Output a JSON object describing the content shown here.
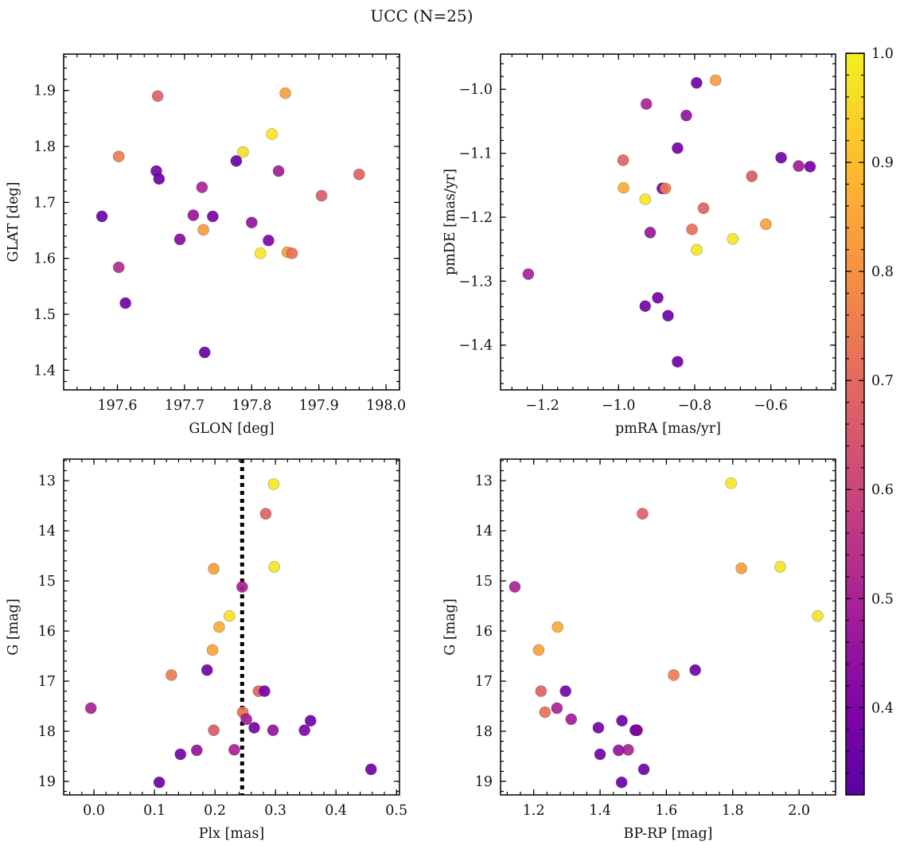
{
  "figure": {
    "title": "UCC (N=25)"
  },
  "colorbar": {
    "min": 0.32,
    "max": 1.0,
    "ticks": [
      0.4,
      0.5,
      0.6,
      0.7,
      0.8,
      0.9,
      1.0
    ],
    "tick_labels": [
      "0.4",
      "0.5",
      "0.6",
      "0.7",
      "0.8",
      "0.9",
      "1.0"
    ],
    "colormap": "plasma"
  },
  "chart_data": [
    {
      "type": "scatter",
      "xlabel": "GLON [deg]",
      "ylabel": "GLAT [deg]",
      "xlim": [
        197.52,
        198.02
      ],
      "ylim": [
        1.365,
        1.965
      ],
      "y_inverted": false,
      "x_ticks": [
        197.6,
        197.7,
        197.8,
        197.9,
        198.0
      ],
      "x_tick_labels": [
        "197.6",
        "197.7",
        "197.8",
        "197.9",
        "198.0"
      ],
      "y_ticks": [
        1.4,
        1.5,
        1.6,
        1.7,
        1.8,
        1.9
      ],
      "y_tick_labels": [
        "1.4",
        "1.5",
        "1.6",
        "1.7",
        "1.8",
        "1.9"
      ],
      "points": [
        {
          "x": 197.66,
          "y": 1.89,
          "c": 0.68
        },
        {
          "x": 197.85,
          "y": 1.895,
          "c": 0.83
        },
        {
          "x": 197.83,
          "y": 1.822,
          "c": 0.98
        },
        {
          "x": 197.787,
          "y": 1.79,
          "c": 0.97
        },
        {
          "x": 197.602,
          "y": 1.782,
          "c": 0.75
        },
        {
          "x": 197.777,
          "y": 1.774,
          "c": 0.35
        },
        {
          "x": 197.658,
          "y": 1.756,
          "c": 0.38
        },
        {
          "x": 197.84,
          "y": 1.756,
          "c": 0.48
        },
        {
          "x": 197.96,
          "y": 1.75,
          "c": 0.68
        },
        {
          "x": 197.662,
          "y": 1.742,
          "c": 0.36
        },
        {
          "x": 197.726,
          "y": 1.727,
          "c": 0.5
        },
        {
          "x": 197.904,
          "y": 1.712,
          "c": 0.66
        },
        {
          "x": 197.577,
          "y": 1.675,
          "c": 0.36
        },
        {
          "x": 197.713,
          "y": 1.677,
          "c": 0.46
        },
        {
          "x": 197.742,
          "y": 1.675,
          "c": 0.38
        },
        {
          "x": 197.8,
          "y": 1.664,
          "c": 0.45
        },
        {
          "x": 197.728,
          "y": 1.651,
          "c": 0.82
        },
        {
          "x": 197.693,
          "y": 1.634,
          "c": 0.42
        },
        {
          "x": 197.825,
          "y": 1.632,
          "c": 0.4
        },
        {
          "x": 197.813,
          "y": 1.609,
          "c": 0.98
        },
        {
          "x": 197.853,
          "y": 1.611,
          "c": 0.84
        },
        {
          "x": 197.86,
          "y": 1.609,
          "c": 0.72
        },
        {
          "x": 197.602,
          "y": 1.584,
          "c": 0.53
        },
        {
          "x": 197.612,
          "y": 1.52,
          "c": 0.37
        },
        {
          "x": 197.73,
          "y": 1.432,
          "c": 0.35
        }
      ]
    },
    {
      "type": "scatter",
      "xlabel": "pmRA [mas/yr]",
      "ylabel": "pmDE [mas/yr]",
      "xlim": [
        -1.31,
        -0.43
      ],
      "ylim": [
        -1.47,
        -0.945
      ],
      "y_inverted": false,
      "x_ticks": [
        -1.2,
        -1.0,
        -0.8,
        -0.6
      ],
      "x_tick_labels": [
        "−1.2",
        "−1.0",
        "−0.8",
        "−0.6"
      ],
      "y_ticks": [
        -1.4,
        -1.3,
        -1.2,
        -1.1,
        -1.0
      ],
      "y_tick_labels": [
        "−1.4",
        "−1.3",
        "−1.2",
        "−1.1",
        "−1.0"
      ],
      "points": [
        {
          "x": -0.745,
          "y": -0.986,
          "c": 0.83
        },
        {
          "x": -0.795,
          "y": -0.99,
          "c": 0.37
        },
        {
          "x": -0.927,
          "y": -1.023,
          "c": 0.5
        },
        {
          "x": -0.822,
          "y": -1.041,
          "c": 0.45
        },
        {
          "x": -0.845,
          "y": -1.092,
          "c": 0.38
        },
        {
          "x": -0.573,
          "y": -1.107,
          "c": 0.37
        },
        {
          "x": -0.527,
          "y": -1.12,
          "c": 0.48
        },
        {
          "x": -0.497,
          "y": -1.121,
          "c": 0.38
        },
        {
          "x": -0.988,
          "y": -1.111,
          "c": 0.68
        },
        {
          "x": -0.65,
          "y": -1.136,
          "c": 0.66
        },
        {
          "x": -0.885,
          "y": -1.155,
          "c": 0.36
        },
        {
          "x": -0.877,
          "y": -1.155,
          "c": 0.75
        },
        {
          "x": -0.987,
          "y": -1.154,
          "c": 0.86
        },
        {
          "x": -0.93,
          "y": -1.172,
          "c": 0.98
        },
        {
          "x": -0.777,
          "y": -1.186,
          "c": 0.68
        },
        {
          "x": -0.613,
          "y": -1.211,
          "c": 0.84
        },
        {
          "x": -0.807,
          "y": -1.219,
          "c": 0.72
        },
        {
          "x": -0.917,
          "y": -1.224,
          "c": 0.46
        },
        {
          "x": -0.7,
          "y": -1.234,
          "c": 0.98
        },
        {
          "x": -0.795,
          "y": -1.251,
          "c": 0.98
        },
        {
          "x": -1.237,
          "y": -1.289,
          "c": 0.5
        },
        {
          "x": -0.897,
          "y": -1.326,
          "c": 0.38
        },
        {
          "x": -0.93,
          "y": -1.339,
          "c": 0.38
        },
        {
          "x": -0.87,
          "y": -1.354,
          "c": 0.37
        },
        {
          "x": -0.845,
          "y": -1.426,
          "c": 0.37
        }
      ]
    },
    {
      "type": "scatter",
      "xlabel": "Plx [mas]",
      "ylabel": "G [mag]",
      "xlim": [
        -0.05,
        0.505
      ],
      "ylim": [
        19.27,
        12.57
      ],
      "y_inverted": true,
      "x_ticks": [
        0.0,
        0.1,
        0.2,
        0.3,
        0.4,
        0.5
      ],
      "x_tick_labels": [
        "0.0",
        "0.1",
        "0.2",
        "0.3",
        "0.4",
        "0.5"
      ],
      "y_ticks": [
        13,
        14,
        15,
        16,
        17,
        18,
        19
      ],
      "y_tick_labels": [
        "13",
        "14",
        "15",
        "16",
        "17",
        "18",
        "19"
      ],
      "vline": {
        "x": 0.245,
        "style": "dotted"
      },
      "points": [
        {
          "x": 0.297,
          "y": 13.07,
          "c": 0.98
        },
        {
          "x": 0.284,
          "y": 13.66,
          "c": 0.68
        },
        {
          "x": 0.198,
          "y": 14.76,
          "c": 0.83
        },
        {
          "x": 0.298,
          "y": 14.72,
          "c": 0.98
        },
        {
          "x": 0.245,
          "y": 15.12,
          "c": 0.5
        },
        {
          "x": 0.224,
          "y": 15.7,
          "c": 0.97
        },
        {
          "x": 0.207,
          "y": 15.92,
          "c": 0.86
        },
        {
          "x": 0.196,
          "y": 16.38,
          "c": 0.84
        },
        {
          "x": 0.128,
          "y": 16.88,
          "c": 0.75
        },
        {
          "x": 0.187,
          "y": 16.78,
          "c": 0.37
        },
        {
          "x": 0.272,
          "y": 17.2,
          "c": 0.68
        },
        {
          "x": 0.282,
          "y": 17.2,
          "c": 0.38
        },
        {
          "x": -0.005,
          "y": 17.54,
          "c": 0.5
        },
        {
          "x": 0.246,
          "y": 17.62,
          "c": 0.72
        },
        {
          "x": 0.252,
          "y": 17.76,
          "c": 0.48
        },
        {
          "x": 0.358,
          "y": 17.79,
          "c": 0.37
        },
        {
          "x": 0.265,
          "y": 17.93,
          "c": 0.38
        },
        {
          "x": 0.198,
          "y": 17.98,
          "c": 0.66
        },
        {
          "x": 0.296,
          "y": 17.98,
          "c": 0.45
        },
        {
          "x": 0.348,
          "y": 17.98,
          "c": 0.4
        },
        {
          "x": 0.232,
          "y": 18.37,
          "c": 0.5
        },
        {
          "x": 0.17,
          "y": 18.38,
          "c": 0.45
        },
        {
          "x": 0.143,
          "y": 18.46,
          "c": 0.38
        },
        {
          "x": 0.458,
          "y": 18.76,
          "c": 0.37
        },
        {
          "x": 0.108,
          "y": 19.02,
          "c": 0.36
        }
      ]
    },
    {
      "type": "scatter",
      "xlabel": "BP-RP [mag]",
      "ylabel": "G [mag]",
      "xlim": [
        1.1,
        2.11
      ],
      "ylim": [
        19.27,
        12.57
      ],
      "y_inverted": true,
      "x_ticks": [
        1.2,
        1.4,
        1.6,
        1.8,
        2.0
      ],
      "x_tick_labels": [
        "1.2",
        "1.4",
        "1.6",
        "1.8",
        "2.0"
      ],
      "y_ticks": [
        13,
        14,
        15,
        16,
        17,
        18,
        19
      ],
      "y_tick_labels": [
        "13",
        "14",
        "15",
        "16",
        "17",
        "18",
        "19"
      ],
      "points": [
        {
          "x": 1.795,
          "y": 13.05,
          "c": 0.98
        },
        {
          "x": 1.528,
          "y": 13.66,
          "c": 0.68
        },
        {
          "x": 1.826,
          "y": 14.75,
          "c": 0.83
        },
        {
          "x": 1.943,
          "y": 14.72,
          "c": 0.98
        },
        {
          "x": 1.143,
          "y": 15.12,
          "c": 0.5
        },
        {
          "x": 2.056,
          "y": 15.7,
          "c": 0.97
        },
        {
          "x": 1.272,
          "y": 15.92,
          "c": 0.86
        },
        {
          "x": 1.215,
          "y": 16.38,
          "c": 0.84
        },
        {
          "x": 1.622,
          "y": 16.88,
          "c": 0.75
        },
        {
          "x": 1.687,
          "y": 16.78,
          "c": 0.37
        },
        {
          "x": 1.222,
          "y": 17.2,
          "c": 0.68
        },
        {
          "x": 1.296,
          "y": 17.2,
          "c": 0.38
        },
        {
          "x": 1.27,
          "y": 17.54,
          "c": 0.5
        },
        {
          "x": 1.234,
          "y": 17.62,
          "c": 0.72
        },
        {
          "x": 1.313,
          "y": 17.76,
          "c": 0.48
        },
        {
          "x": 1.466,
          "y": 17.79,
          "c": 0.37
        },
        {
          "x": 1.395,
          "y": 17.93,
          "c": 0.38
        },
        {
          "x": 1.512,
          "y": 17.98,
          "c": 0.66
        },
        {
          "x": 1.506,
          "y": 17.98,
          "c": 0.45
        },
        {
          "x": 1.51,
          "y": 17.98,
          "c": 0.4
        },
        {
          "x": 1.485,
          "y": 18.37,
          "c": 0.5
        },
        {
          "x": 1.456,
          "y": 18.38,
          "c": 0.45
        },
        {
          "x": 1.4,
          "y": 18.46,
          "c": 0.38
        },
        {
          "x": 1.532,
          "y": 18.76,
          "c": 0.37
        },
        {
          "x": 1.465,
          "y": 19.02,
          "c": 0.36
        }
      ]
    }
  ]
}
